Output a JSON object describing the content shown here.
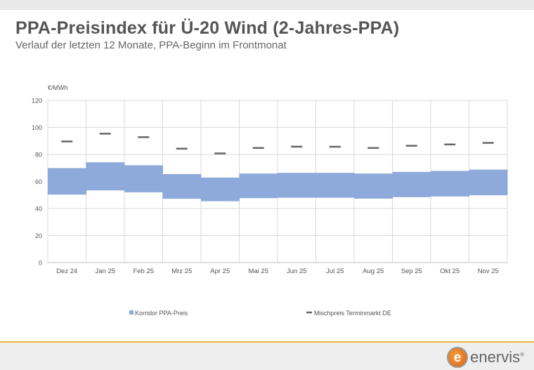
{
  "header": {
    "title": "PPA-Preisindex für Ü-20 Wind (2-Jahres-PPA)",
    "subtitle": "Verlauf der letzten 12 Monate, PPA-Beginn im Frontmonat"
  },
  "logo": {
    "text": "enervis",
    "mark": "e",
    "reg": "®"
  },
  "chart_data": {
    "type": "bar",
    "title": "PPA-Preisindex für Ü-20 Wind (2-Jahres-PPA)",
    "ylabel": "€/MWh",
    "ylim": [
      0,
      120
    ],
    "yticks": [
      0,
      20,
      40,
      60,
      80,
      100,
      120
    ],
    "grid": true,
    "legend_placement": "bottom",
    "categories": [
      "Dez 24",
      "Jan 25",
      "Feb 25",
      "Mrz 25",
      "Apr 25",
      "Mai 25",
      "Jun 25",
      "Jul 25",
      "Aug 25",
      "Sep 25",
      "Okt 25",
      "Nov 25"
    ],
    "series": [
      {
        "name": "Korridor PPA-Preis",
        "type": "range",
        "color": "#8eaadb",
        "low": [
          50.3,
          53.4,
          52.0,
          47.2,
          45.4,
          47.7,
          48.0,
          48.0,
          47.3,
          48.4,
          48.9,
          49.8
        ],
        "high": [
          69.9,
          74.2,
          72.0,
          65.5,
          62.9,
          65.9,
          66.4,
          66.4,
          65.9,
          67.1,
          67.8,
          68.8
        ]
      },
      {
        "name": "Mischpreis Terminmarkt DE",
        "type": "marker",
        "color": "#666666",
        "values": [
          89.6,
          95.4,
          92.8,
          84.3,
          80.8,
          84.8,
          85.8,
          85.7,
          84.8,
          86.4,
          87.4,
          88.6
        ]
      }
    ]
  }
}
